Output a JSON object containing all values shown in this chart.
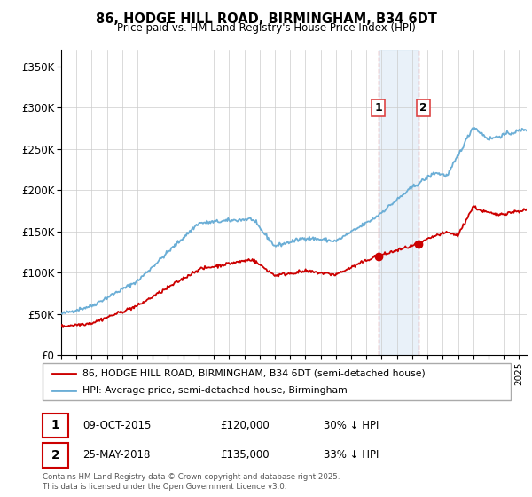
{
  "title": "86, HODGE HILL ROAD, BIRMINGHAM, B34 6DT",
  "subtitle": "Price paid vs. HM Land Registry's House Price Index (HPI)",
  "legend_line1": "86, HODGE HILL ROAD, BIRMINGHAM, B34 6DT (semi-detached house)",
  "legend_line2": "HPI: Average price, semi-detached house, Birmingham",
  "marker1_date": "09-OCT-2015",
  "marker1_price": 120000,
  "marker1_label": "£120,000",
  "marker1_pct": "30% ↓ HPI",
  "marker2_date": "25-MAY-2018",
  "marker2_price": 135000,
  "marker2_label": "£135,000",
  "marker2_pct": "33% ↓ HPI",
  "footer": "Contains HM Land Registry data © Crown copyright and database right 2025.\nThis data is licensed under the Open Government Licence v3.0.",
  "hpi_color": "#6baed6",
  "price_color": "#cc0000",
  "marker_color": "#cc0000",
  "vline_color": "#dd4444",
  "shading_color": "#cfe2f3",
  "shading_alpha": 0.45,
  "ylim_max": 370000,
  "ylim_min": 0,
  "sale1_year": 2015.77,
  "sale2_year": 2018.42,
  "xmin": 1995,
  "xmax": 2025.5
}
